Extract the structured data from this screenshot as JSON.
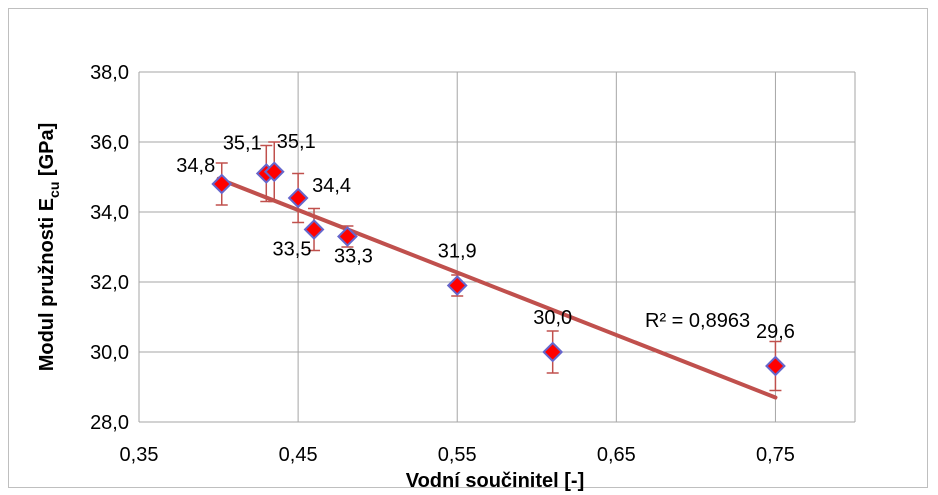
{
  "chart_data": {
    "type": "scatter",
    "xlabel": "Vodní součinitel [-]",
    "ylabel_main": "Modul pružnosti E",
    "ylabel_sub": "cu",
    "ylabel_unit": " [GPa]",
    "xlim": [
      0.35,
      0.8
    ],
    "ylim": [
      28.0,
      38.0
    ],
    "x_ticks": [
      0.35,
      0.45,
      0.55,
      0.65,
      0.75
    ],
    "x_tick_labels": [
      "0,35",
      "0,45",
      "0,55",
      "0,65",
      "0,75"
    ],
    "y_ticks": [
      28,
      30,
      32,
      34,
      36,
      38
    ],
    "y_tick_labels": [
      "28,0",
      "30,0",
      "32,0",
      "34,0",
      "36,0",
      "38,0"
    ],
    "grid": true,
    "points": [
      {
        "x": 0.402,
        "y": 34.8,
        "label": "34,8",
        "err_low": 0.6,
        "err_high": 0.6
      },
      {
        "x": 0.43,
        "y": 35.1,
        "label": "35,1",
        "err_low": 0.8,
        "err_high": 0.8
      },
      {
        "x": 0.435,
        "y": 35.15,
        "label": "35,1",
        "err_low": 0.85,
        "err_high": 0.85
      },
      {
        "x": 0.45,
        "y": 34.4,
        "label": "34,4",
        "err_low": 0.7,
        "err_high": 0.7
      },
      {
        "x": 0.46,
        "y": 33.5,
        "label": "33,5",
        "err_low": 0.6,
        "err_high": 0.6
      },
      {
        "x": 0.481,
        "y": 33.3,
        "label": "33,3",
        "err_low": 0.3,
        "err_high": 0.3
      },
      {
        "x": 0.55,
        "y": 31.9,
        "label": "31,9",
        "err_low": 0.3,
        "err_high": 0.3
      },
      {
        "x": 0.61,
        "y": 30.0,
        "label": "30,0",
        "err_low": 0.6,
        "err_high": 0.6
      },
      {
        "x": 0.75,
        "y": 29.6,
        "label": "29,6",
        "err_low": 0.7,
        "err_high": 0.7
      }
    ],
    "trendline": {
      "x": [
        0.4,
        0.75
      ],
      "y": [
        34.95,
        28.7
      ]
    },
    "r_squared_label": "R² = 0,8963",
    "colors": {
      "marker_fill": "#ff0000",
      "marker_stroke": "#6666cc",
      "trendline": "#c0504d",
      "error_bar": "#c0504d",
      "grid": "#a6a6a6"
    }
  }
}
